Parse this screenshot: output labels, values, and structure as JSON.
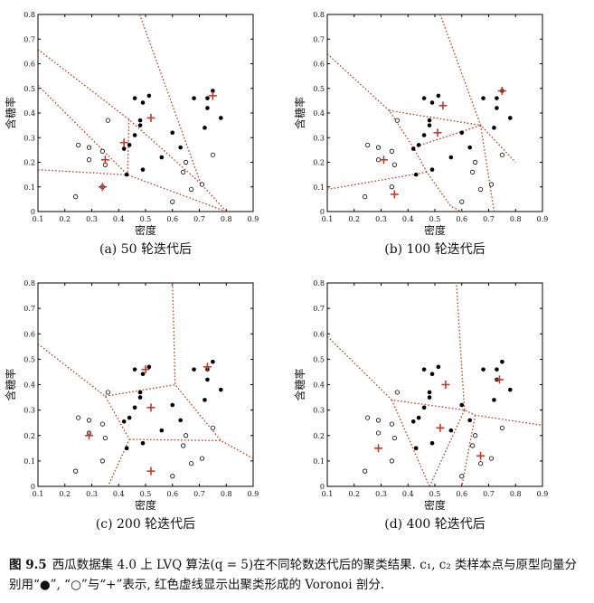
{
  "caption": {
    "label": "图 9.5",
    "text": "西瓜数据集 4.0 上 LVQ 算法(q = 5)在不同轮数迭代后的聚类结果. c₁, c₂ 类样本点与原型向量分别用“●”, “○”与“+”表示, 红色虚线显示出聚类形成的 Voronoi 剖分."
  },
  "colors": {
    "boundary": "#c0392b",
    "prototype": "#c0392b",
    "class1": "#000000",
    "class2": "#ffffff"
  },
  "axes": {
    "xlabel": "密度",
    "ylabel": "含糖率",
    "xlim": [
      0.1,
      0.9
    ],
    "ylim": [
      0,
      0.8
    ],
    "xticks": [
      "0.1",
      "0.2",
      "0.3",
      "0.4",
      "0.5",
      "0.6",
      "0.7",
      "0.8",
      "0.9"
    ],
    "yticks": [
      "0",
      "0.1",
      "0.2",
      "0.3",
      "0.4",
      "0.5",
      "0.6",
      "0.7",
      "0.8"
    ]
  },
  "chart_data": [
    {
      "type": "scatter",
      "caption": "(a) 50 轮迭代后",
      "class1": [
        [
          0.46,
          0.46
        ],
        [
          0.49,
          0.442
        ],
        [
          0.48,
          0.37
        ],
        [
          0.513,
          0.47
        ],
        [
          0.48,
          0.35
        ],
        [
          0.46,
          0.31
        ],
        [
          0.44,
          0.27
        ],
        [
          0.42,
          0.255
        ],
        [
          0.49,
          0.17
        ],
        [
          0.6,
          0.32
        ],
        [
          0.63,
          0.26
        ],
        [
          0.56,
          0.22
        ],
        [
          0.68,
          0.46
        ],
        [
          0.73,
          0.46
        ],
        [
          0.73,
          0.42
        ],
        [
          0.75,
          0.49
        ],
        [
          0.78,
          0.38
        ],
        [
          0.72,
          0.34
        ],
        [
          0.43,
          0.15
        ]
      ],
      "class2": [
        [
          0.34,
          0.245
        ],
        [
          0.36,
          0.37
        ],
        [
          0.29,
          0.26
        ],
        [
          0.25,
          0.27
        ],
        [
          0.24,
          0.06
        ],
        [
          0.34,
          0.1
        ],
        [
          0.35,
          0.19
        ],
        [
          0.29,
          0.21
        ],
        [
          0.6,
          0.04
        ],
        [
          0.64,
          0.16
        ],
        [
          0.65,
          0.2
        ],
        [
          0.67,
          0.09
        ],
        [
          0.71,
          0.11
        ],
        [
          0.75,
          0.23
        ]
      ],
      "prototypes": [
        [
          0.52,
          0.38
        ],
        [
          0.75,
          0.47
        ],
        [
          0.42,
          0.28
        ],
        [
          0.35,
          0.21
        ],
        [
          0.34,
          0.1
        ]
      ],
      "boundaries": [
        [
          [
            0.1,
            0.658
          ],
          [
            0.438,
            0.374
          ],
          [
            0.705,
            0.114
          ],
          [
            0.8,
            0.0
          ]
        ],
        [
          [
            0.1,
            0.512
          ],
          [
            0.433,
            0.149
          ],
          [
            0.8,
            0.0
          ]
        ],
        [
          [
            0.1,
            0.17
          ],
          [
            0.433,
            0.149
          ]
        ],
        [
          [
            0.438,
            0.374
          ],
          [
            0.433,
            0.149
          ]
        ],
        [
          [
            0.478,
            0.8
          ],
          [
            0.705,
            0.114
          ]
        ]
      ]
    },
    {
      "type": "scatter",
      "caption": "(b) 100 轮迭代后",
      "class1": [
        [
          0.46,
          0.46
        ],
        [
          0.49,
          0.442
        ],
        [
          0.48,
          0.37
        ],
        [
          0.513,
          0.47
        ],
        [
          0.48,
          0.35
        ],
        [
          0.46,
          0.31
        ],
        [
          0.44,
          0.27
        ],
        [
          0.42,
          0.255
        ],
        [
          0.49,
          0.17
        ],
        [
          0.6,
          0.32
        ],
        [
          0.63,
          0.26
        ],
        [
          0.56,
          0.22
        ],
        [
          0.68,
          0.46
        ],
        [
          0.73,
          0.46
        ],
        [
          0.73,
          0.42
        ],
        [
          0.75,
          0.49
        ],
        [
          0.78,
          0.38
        ],
        [
          0.72,
          0.34
        ],
        [
          0.43,
          0.15
        ]
      ],
      "class2": [
        [
          0.34,
          0.245
        ],
        [
          0.36,
          0.37
        ],
        [
          0.29,
          0.26
        ],
        [
          0.25,
          0.27
        ],
        [
          0.24,
          0.06
        ],
        [
          0.34,
          0.1
        ],
        [
          0.35,
          0.19
        ],
        [
          0.29,
          0.21
        ],
        [
          0.6,
          0.04
        ],
        [
          0.64,
          0.16
        ],
        [
          0.65,
          0.2
        ],
        [
          0.67,
          0.09
        ],
        [
          0.71,
          0.11
        ],
        [
          0.75,
          0.23
        ]
      ],
      "prototypes": [
        [
          0.53,
          0.43
        ],
        [
          0.75,
          0.49
        ],
        [
          0.51,
          0.32
        ],
        [
          0.31,
          0.21
        ],
        [
          0.35,
          0.07
        ]
      ],
      "boundaries": [
        [
          [
            0.1,
            0.64
          ],
          [
            0.33,
            0.41
          ],
          [
            0.42,
            0.26
          ],
          [
            0.47,
            0.16
          ],
          [
            0.56,
            0.02
          ],
          [
            0.6,
            0.0
          ]
        ],
        [
          [
            0.33,
            0.41
          ],
          [
            0.67,
            0.35
          ],
          [
            0.72,
            0.0
          ]
        ],
        [
          [
            0.42,
            0.26
          ],
          [
            0.67,
            0.35
          ]
        ],
        [
          [
            0.1,
            0.09
          ],
          [
            0.47,
            0.16
          ]
        ],
        [
          [
            0.52,
            0.8
          ],
          [
            0.67,
            0.35
          ],
          [
            0.8,
            0.2
          ]
        ]
      ]
    },
    {
      "type": "scatter",
      "caption": "(c) 200 轮迭代后",
      "class1": [
        [
          0.46,
          0.46
        ],
        [
          0.49,
          0.442
        ],
        [
          0.48,
          0.37
        ],
        [
          0.513,
          0.47
        ],
        [
          0.48,
          0.35
        ],
        [
          0.46,
          0.31
        ],
        [
          0.44,
          0.27
        ],
        [
          0.42,
          0.255
        ],
        [
          0.49,
          0.17
        ],
        [
          0.6,
          0.32
        ],
        [
          0.63,
          0.26
        ],
        [
          0.56,
          0.22
        ],
        [
          0.68,
          0.46
        ],
        [
          0.73,
          0.46
        ],
        [
          0.73,
          0.42
        ],
        [
          0.75,
          0.49
        ],
        [
          0.78,
          0.38
        ],
        [
          0.72,
          0.34
        ],
        [
          0.43,
          0.15
        ]
      ],
      "class2": [
        [
          0.34,
          0.245
        ],
        [
          0.36,
          0.37
        ],
        [
          0.29,
          0.26
        ],
        [
          0.25,
          0.27
        ],
        [
          0.24,
          0.06
        ],
        [
          0.34,
          0.1
        ],
        [
          0.35,
          0.19
        ],
        [
          0.29,
          0.21
        ],
        [
          0.6,
          0.04
        ],
        [
          0.64,
          0.16
        ],
        [
          0.65,
          0.2
        ],
        [
          0.67,
          0.09
        ],
        [
          0.71,
          0.11
        ],
        [
          0.75,
          0.23
        ]
      ],
      "prototypes": [
        [
          0.5,
          0.46
        ],
        [
          0.73,
          0.47
        ],
        [
          0.52,
          0.31
        ],
        [
          0.29,
          0.2
        ],
        [
          0.52,
          0.06
        ]
      ],
      "boundaries": [
        [
          [
            0.1,
            0.56
          ],
          [
            0.35,
            0.355
          ],
          [
            0.44,
            0.185
          ],
          [
            0.36,
            0.0
          ]
        ],
        [
          [
            0.35,
            0.355
          ],
          [
            0.61,
            0.4
          ],
          [
            0.78,
            0.18
          ],
          [
            0.9,
            0.11
          ]
        ],
        [
          [
            0.44,
            0.185
          ],
          [
            0.78,
            0.18
          ]
        ],
        [
          [
            0.6,
            0.8
          ],
          [
            0.61,
            0.4
          ]
        ]
      ]
    },
    {
      "type": "scatter",
      "caption": "(d) 400 轮迭代后",
      "class1": [
        [
          0.46,
          0.46
        ],
        [
          0.49,
          0.442
        ],
        [
          0.48,
          0.37
        ],
        [
          0.513,
          0.47
        ],
        [
          0.48,
          0.35
        ],
        [
          0.46,
          0.31
        ],
        [
          0.44,
          0.27
        ],
        [
          0.42,
          0.255
        ],
        [
          0.49,
          0.17
        ],
        [
          0.6,
          0.32
        ],
        [
          0.63,
          0.26
        ],
        [
          0.56,
          0.22
        ],
        [
          0.68,
          0.46
        ],
        [
          0.73,
          0.46
        ],
        [
          0.73,
          0.42
        ],
        [
          0.75,
          0.49
        ],
        [
          0.78,
          0.38
        ],
        [
          0.72,
          0.34
        ],
        [
          0.43,
          0.15
        ]
      ],
      "class2": [
        [
          0.34,
          0.245
        ],
        [
          0.36,
          0.37
        ],
        [
          0.29,
          0.26
        ],
        [
          0.25,
          0.27
        ],
        [
          0.24,
          0.06
        ],
        [
          0.34,
          0.1
        ],
        [
          0.35,
          0.19
        ],
        [
          0.29,
          0.21
        ],
        [
          0.6,
          0.04
        ],
        [
          0.64,
          0.16
        ],
        [
          0.65,
          0.2
        ],
        [
          0.67,
          0.09
        ],
        [
          0.71,
          0.11
        ],
        [
          0.75,
          0.23
        ]
      ],
      "prototypes": [
        [
          0.54,
          0.4
        ],
        [
          0.74,
          0.42
        ],
        [
          0.52,
          0.23
        ],
        [
          0.29,
          0.15
        ],
        [
          0.67,
          0.12
        ]
      ],
      "boundaries": [
        [
          [
            0.1,
            0.59
          ],
          [
            0.34,
            0.34
          ],
          [
            0.61,
            0.3
          ],
          [
            0.65,
            0.28
          ],
          [
            0.9,
            0.24
          ]
        ],
        [
          [
            0.34,
            0.34
          ],
          [
            0.48,
            0.0
          ]
        ],
        [
          [
            0.48,
            0.0
          ],
          [
            0.61,
            0.3
          ]
        ],
        [
          [
            0.65,
            0.28
          ],
          [
            0.6,
            0.0
          ]
        ],
        [
          [
            0.61,
            0.3
          ],
          [
            0.58,
            0.8
          ]
        ]
      ]
    }
  ]
}
